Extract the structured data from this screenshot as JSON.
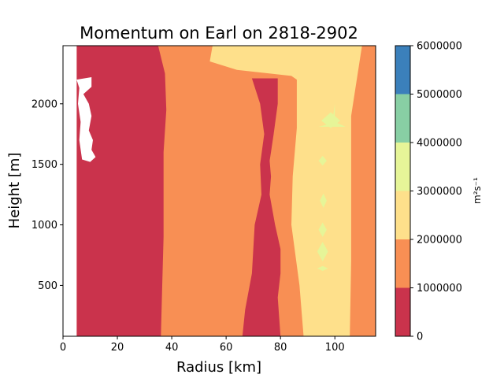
{
  "chart_data": {
    "type": "heatmap",
    "subtype": "filled-contour",
    "title": "Momentum on Earl on 2818-2902",
    "xlabel": "Radius [km]",
    "ylabel": "Height [m]",
    "xlim": [
      0,
      115
    ],
    "ylim": [
      80,
      2480
    ],
    "x_ticks": [
      "0",
      "20",
      "40",
      "60",
      "80",
      "100"
    ],
    "y_ticks": [
      "500",
      "1000",
      "1500",
      "2000"
    ],
    "colorbar": {
      "label": "m²s⁻¹",
      "levels": [
        0,
        1000000,
        2000000,
        3000000,
        4000000,
        5000000,
        6000000
      ],
      "tick_labels": [
        "0",
        "1000000",
        "2000000",
        "3000000",
        "4000000",
        "5000000",
        "6000000"
      ],
      "colors": [
        "#ca334c",
        "#f88f54",
        "#fee08b",
        "#e6f598",
        "#88cfa4",
        "#3b80bb"
      ]
    },
    "regions": [
      {
        "level_band": "0-1000000",
        "boundaries": [
          {
            "x": 5,
            "y": 2480
          },
          {
            "x": 35,
            "y": 2480
          },
          {
            "x": 37.5,
            "y": 2250
          },
          {
            "x": 38,
            "y": 1950
          },
          {
            "x": 37,
            "y": 1600
          },
          {
            "x": 37,
            "y": 1300
          },
          {
            "x": 37,
            "y": 900
          },
          {
            "x": 36.5,
            "y": 500
          },
          {
            "x": 36,
            "y": 80
          },
          {
            "x": 5,
            "y": 80
          }
        ]
      },
      {
        "level_band": "0-1000000",
        "name_hint": "inner band",
        "boundaries": [
          {
            "x": 69.5,
            "y": 2210
          },
          {
            "x": 79,
            "y": 2210
          },
          {
            "x": 79,
            "y": 2000
          },
          {
            "x": 77.5,
            "y": 1750
          },
          {
            "x": 76.5,
            "y": 1600
          },
          {
            "x": 76,
            "y": 1530
          },
          {
            "x": 76.5,
            "y": 1400
          },
          {
            "x": 76,
            "y": 1250
          },
          {
            "x": 78,
            "y": 1000
          },
          {
            "x": 80,
            "y": 800
          },
          {
            "x": 80,
            "y": 600
          },
          {
            "x": 79,
            "y": 400
          },
          {
            "x": 80,
            "y": 80
          },
          {
            "x": 66,
            "y": 80
          },
          {
            "x": 67,
            "y": 300
          },
          {
            "x": 69.5,
            "y": 600
          },
          {
            "x": 70.5,
            "y": 1000
          },
          {
            "x": 73,
            "y": 1250
          },
          {
            "x": 72.5,
            "y": 1500
          },
          {
            "x": 74,
            "y": 1750
          },
          {
            "x": 72.5,
            "y": 2000
          }
        ]
      },
      {
        "level_band": "2000000-3000000",
        "boundaries": [
          {
            "x": 55,
            "y": 2480
          },
          {
            "x": 110,
            "y": 2480
          },
          {
            "x": 106,
            "y": 1900
          },
          {
            "x": 106,
            "y": 1300
          },
          {
            "x": 106,
            "y": 700
          },
          {
            "x": 105.5,
            "y": 80
          },
          {
            "x": 88.5,
            "y": 80
          },
          {
            "x": 87,
            "y": 500
          },
          {
            "x": 84,
            "y": 1000
          },
          {
            "x": 84.5,
            "y": 1400
          },
          {
            "x": 86,
            "y": 1800
          },
          {
            "x": 86,
            "y": 2200
          },
          {
            "x": 84,
            "y": 2230
          },
          {
            "x": 64,
            "y": 2280
          },
          {
            "x": 54,
            "y": 2350
          }
        ]
      },
      {
        "level_band": "3000000-4000000",
        "name_hint": "small patches",
        "boundaries": [
          {
            "x": 94,
            "y": 1810
          },
          {
            "x": 99,
            "y": 1840
          },
          {
            "x": 100,
            "y": 2000
          },
          {
            "x": 100,
            "y": 1850
          },
          {
            "x": 104,
            "y": 1810
          }
        ]
      }
    ],
    "missing_regions": [
      {
        "x_range": [
          0,
          5
        ],
        "y_range": [
          80,
          2480
        ]
      },
      {
        "shape": "white blob",
        "x_center": 10,
        "y_range": [
          1530,
          2220
        ]
      }
    ]
  }
}
